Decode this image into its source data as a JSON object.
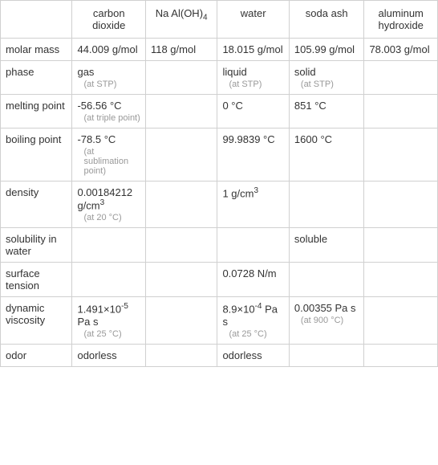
{
  "headers": {
    "blank": "",
    "carbon_dioxide": "carbon dioxide",
    "na_aloh4": "Na Al(OH)",
    "na_aloh4_sub": "4",
    "water": "water",
    "soda_ash": "soda ash",
    "aluminum_hydroxide": "aluminum hydroxide"
  },
  "rows": {
    "molar_mass": {
      "label": "molar mass",
      "carbon_dioxide": "44.009 g/mol",
      "na_aloh4": "118 g/mol",
      "water": "18.015 g/mol",
      "soda_ash": "105.99 g/mol",
      "aluminum_hydroxide": "78.003 g/mol"
    },
    "phase": {
      "label": "phase",
      "carbon_dioxide": "gas",
      "carbon_dioxide_note": "(at STP)",
      "na_aloh4": "",
      "water": "liquid",
      "water_note": "(at STP)",
      "soda_ash": "solid",
      "soda_ash_note": "(at STP)",
      "aluminum_hydroxide": ""
    },
    "melting_point": {
      "label": "melting point",
      "carbon_dioxide": "-56.56 °C",
      "carbon_dioxide_note": "(at triple point)",
      "na_aloh4": "",
      "water": "0 °C",
      "soda_ash": "851 °C",
      "aluminum_hydroxide": ""
    },
    "boiling_point": {
      "label": "boiling point",
      "carbon_dioxide": "-78.5 °C",
      "carbon_dioxide_note": "(at sublimation point)",
      "na_aloh4": "",
      "water": "99.9839 °C",
      "soda_ash": "1600 °C",
      "aluminum_hydroxide": ""
    },
    "density": {
      "label": "density",
      "carbon_dioxide_pre": "0.00184212 g/cm",
      "carbon_dioxide_sup": "3",
      "carbon_dioxide_note": "(at 20 °C)",
      "na_aloh4": "",
      "water_pre": "1 g/cm",
      "water_sup": "3",
      "soda_ash": "",
      "aluminum_hydroxide": ""
    },
    "solubility": {
      "label": "solubility in water",
      "carbon_dioxide": "",
      "na_aloh4": "",
      "water": "",
      "soda_ash": "soluble",
      "aluminum_hydroxide": ""
    },
    "surface_tension": {
      "label": "surface tension",
      "carbon_dioxide": "",
      "na_aloh4": "",
      "water": "0.0728 N/m",
      "soda_ash": "",
      "aluminum_hydroxide": ""
    },
    "dynamic_viscosity": {
      "label": "dynamic viscosity",
      "carbon_dioxide_pre": "1.491×10",
      "carbon_dioxide_sup": "-5",
      "carbon_dioxide_post": " Pa s",
      "carbon_dioxide_note": "(at 25 °C)",
      "na_aloh4": "",
      "water_pre": "8.9×10",
      "water_sup": "-4",
      "water_post": " Pa s",
      "water_note": "(at 25 °C)",
      "soda_ash": "0.00355 Pa s",
      "soda_ash_note": "(at 900 °C)",
      "aluminum_hydroxide": ""
    },
    "odor": {
      "label": "odor",
      "carbon_dioxide": "odorless",
      "na_aloh4": "",
      "water": "odorless",
      "soda_ash": "",
      "aluminum_hydroxide": ""
    }
  }
}
